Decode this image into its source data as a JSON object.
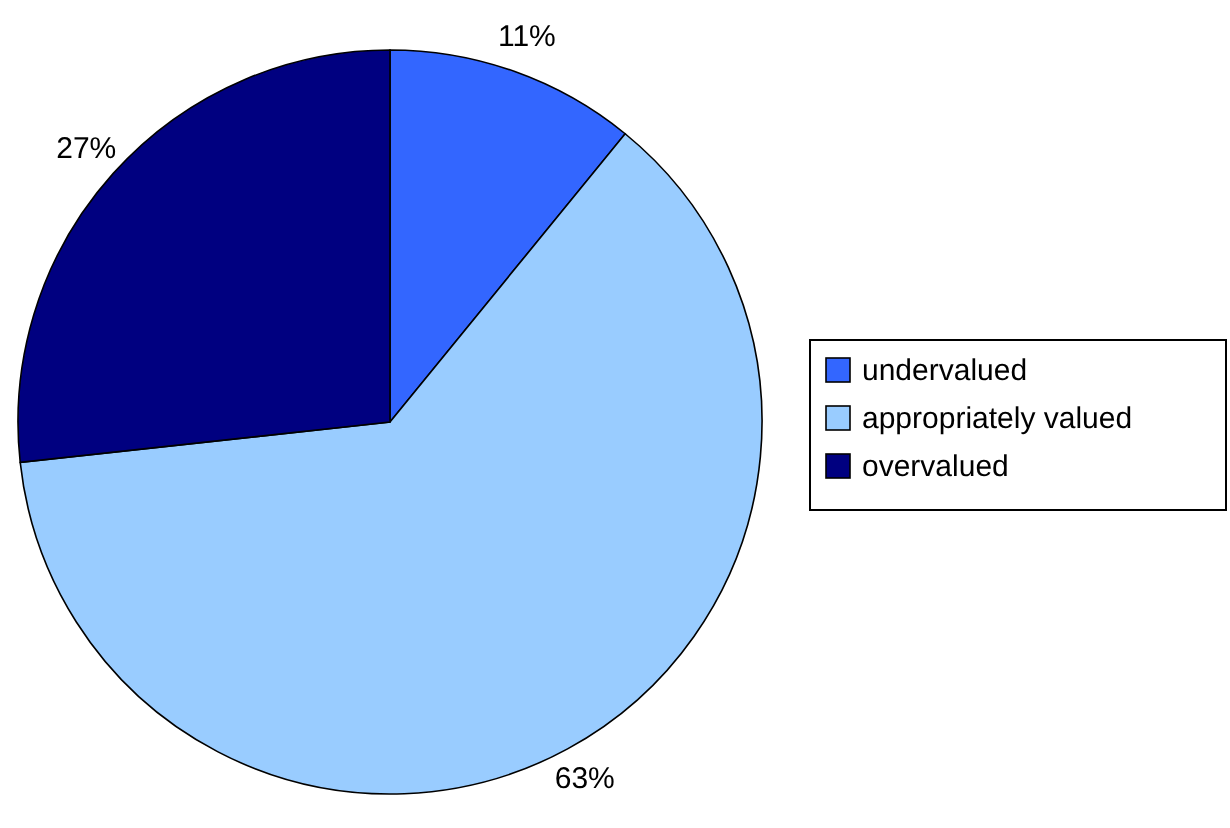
{
  "chart_data": {
    "type": "pie",
    "categories": [
      "undervalued",
      "appropriately valued",
      "overvalued"
    ],
    "values": [
      11,
      63,
      27
    ],
    "colors": [
      "#3366ff",
      "#99ccff",
      "#000080"
    ],
    "value_labels": [
      "11%",
      "63%",
      "27%"
    ],
    "legend": "right"
  }
}
